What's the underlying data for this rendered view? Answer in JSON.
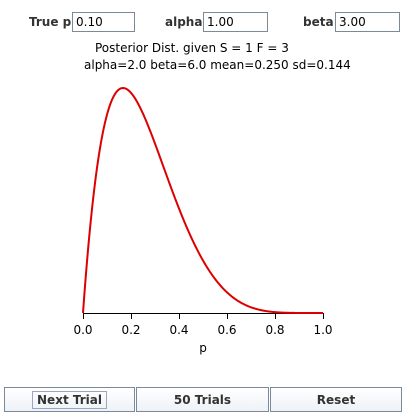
{
  "params": {
    "true_p": {
      "label": "True p:",
      "value": "0.10"
    },
    "alpha": {
      "label": "alpha:",
      "value": "1.00"
    },
    "beta": {
      "label": "beta:",
      "value": "3.00"
    }
  },
  "posterior": {
    "line1": "Posterior Dist. given S = 1   F = 3",
    "line2": "alpha=2.0  beta=6.0  mean=0.250  sd=0.144"
  },
  "chart_data": {
    "type": "line",
    "xlabel": "p",
    "ylabel": "",
    "xlim": [
      0.0,
      1.0
    ],
    "x_ticks": [
      "0.0",
      "0.2",
      "0.4",
      "0.6",
      "0.8",
      "1.0"
    ],
    "grid": false,
    "series": [
      {
        "alpha": 2.0,
        "beta": 6.0,
        "color": "#dd0000"
      }
    ]
  },
  "buttons": {
    "next_trial": "Next Trial",
    "fifty_trials": "50 Trials",
    "reset": "Reset"
  }
}
